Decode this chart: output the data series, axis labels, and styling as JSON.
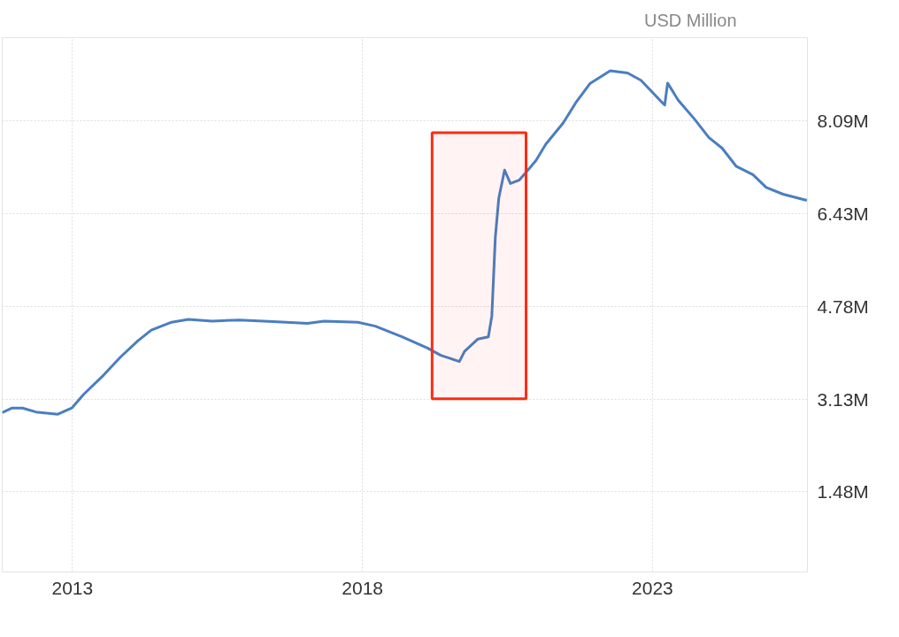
{
  "chart_data": {
    "type": "line",
    "ylabel": "USD Million",
    "series": [
      {
        "color": "#4a7ec0",
        "x": [
          2011.79,
          2011.96,
          2012.14,
          2012.37,
          2012.75,
          2012.99,
          2013.19,
          2013.54,
          2013.83,
          2014.13,
          2014.36,
          2014.71,
          2015.0,
          2015.41,
          2015.88,
          2016.46,
          2017.05,
          2017.34,
          2017.92,
          2018.22,
          2018.68,
          2019.12,
          2019.35,
          2019.67,
          2019.76,
          2019.99,
          2020.17,
          2020.23,
          2020.29,
          2020.35,
          2020.45,
          2020.55,
          2020.7,
          2020.81,
          2020.99,
          2021.16,
          2021.46,
          2021.69,
          2021.92,
          2022.27,
          2022.57,
          2022.8,
          2023.15,
          2023.21,
          2023.26,
          2023.44,
          2023.73,
          2023.97,
          2024.2,
          2024.44,
          2024.73,
          2024.96,
          2025.25,
          2025.66
        ],
        "values": [
          2890000,
          2970000,
          2970000,
          2900000,
          2860000,
          2970000,
          3210000,
          3560000,
          3880000,
          4170000,
          4360000,
          4500000,
          4550000,
          4520000,
          4540000,
          4510000,
          4480000,
          4520000,
          4500000,
          4430000,
          4240000,
          4040000,
          3910000,
          3800000,
          3980000,
          4200000,
          4240000,
          4610000,
          6010000,
          6710000,
          7210000,
          6970000,
          7030000,
          7160000,
          7380000,
          7670000,
          8050000,
          8430000,
          8750000,
          8980000,
          8940000,
          8810000,
          8430000,
          8370000,
          8760000,
          8460000,
          8110000,
          7790000,
          7600000,
          7280000,
          7130000,
          6900000,
          6780000,
          6670000
        ]
      }
    ],
    "xlim": [
      2011.79,
      2025.67
    ],
    "xticks": [
      2013,
      2018,
      2023
    ],
    "ylim": [
      50000,
      9570000
    ],
    "yticks": [
      {
        "value": 1480000,
        "label": "1.48M"
      },
      {
        "value": 3130000,
        "label": "3.13M"
      },
      {
        "value": 4780000,
        "label": "4.78M"
      },
      {
        "value": 6430000,
        "label": "6.43M"
      },
      {
        "value": 8090000,
        "label": "8.09M"
      }
    ],
    "bands": [
      {
        "axis": "x",
        "from": 2019.2,
        "to": 2020.82,
        "label": null,
        "color": "#ff2a12"
      }
    ],
    "grid": true,
    "marker": "none",
    "line_style": "solid"
  }
}
